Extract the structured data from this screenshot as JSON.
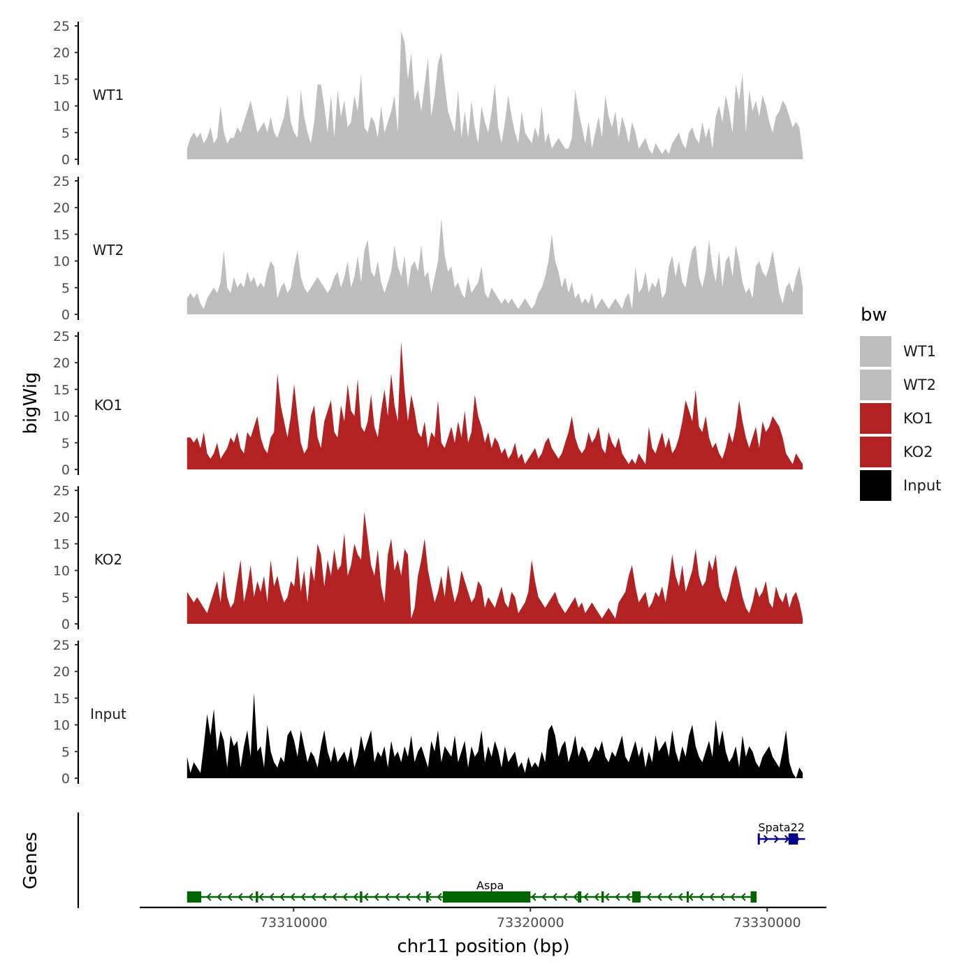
{
  "chart_data": {
    "type": "area",
    "title": "",
    "ylabel": "bigWig",
    "xlabel": "chr11 position (bp)",
    "genes_label": "Genes",
    "ylim": [
      0,
      25
    ],
    "yticks": [
      0,
      5,
      10,
      15,
      20,
      25
    ],
    "xlim": [
      73303500,
      73332500
    ],
    "xticks": [
      73310000,
      73320000,
      73330000
    ],
    "xtick_labels": [
      "73310000",
      "73320000",
      "73330000"
    ],
    "region": [
      73305500,
      73331500
    ],
    "legend": {
      "title": "bw",
      "entries": [
        {
          "name": "WT1",
          "color": "#bebebe"
        },
        {
          "name": "WT2",
          "color": "#bebebe"
        },
        {
          "name": "KO1",
          "color": "#b22222"
        },
        {
          "name": "KO2",
          "color": "#b22222"
        },
        {
          "name": "Input",
          "color": "#000000"
        }
      ]
    },
    "series": [
      {
        "name": "WT1",
        "color": "#bebebe",
        "values": [
          2,
          4,
          5,
          4,
          5,
          3,
          4,
          6,
          3,
          4,
          10,
          5,
          3,
          4,
          4,
          6,
          5,
          7,
          9,
          11,
          8,
          5,
          6,
          7,
          5,
          8,
          5,
          4,
          6,
          8,
          12,
          7,
          5,
          4,
          13,
          8,
          5,
          3,
          7,
          14,
          14,
          10,
          5,
          12,
          4,
          13,
          8,
          11,
          6,
          7,
          12,
          9,
          16,
          6,
          5,
          8,
          7,
          4,
          10,
          5,
          7,
          9,
          12,
          5,
          24,
          22,
          15,
          20,
          11,
          13,
          9,
          14,
          19,
          8,
          12,
          18,
          20,
          14,
          9,
          7,
          5,
          13,
          4,
          9,
          4,
          11,
          6,
          3,
          10,
          7,
          5,
          9,
          14,
          6,
          3,
          7,
          12,
          8,
          5,
          3,
          9,
          5,
          4,
          3,
          6,
          4,
          10,
          3,
          5,
          2,
          3,
          4,
          3,
          2,
          2,
          4,
          13,
          9,
          6,
          3,
          7,
          2,
          5,
          8,
          4,
          12,
          8,
          6,
          9,
          4,
          8,
          6,
          3,
          7,
          5,
          2,
          3,
          4,
          2,
          1,
          3,
          2,
          1,
          2,
          1,
          3,
          4,
          5,
          3,
          2,
          5,
          6,
          4,
          3,
          7,
          4,
          6,
          2,
          8,
          10,
          7,
          12,
          9,
          5,
          14,
          11,
          16,
          5,
          13,
          9,
          11,
          8,
          12,
          10,
          7,
          5,
          8,
          9,
          11,
          10,
          8,
          6,
          7,
          6,
          1
        ]
      },
      {
        "name": "WT2",
        "color": "#bebebe",
        "values": [
          3,
          4,
          3,
          4,
          2,
          1,
          3,
          4,
          5,
          4,
          6,
          12,
          5,
          4,
          7,
          5,
          6,
          5,
          8,
          6,
          7,
          5,
          6,
          5,
          8,
          10,
          9,
          3,
          5,
          6,
          4,
          5,
          9,
          12,
          7,
          5,
          4,
          5,
          6,
          7,
          6,
          5,
          4,
          5,
          7,
          8,
          5,
          7,
          10,
          5,
          7,
          11,
          6,
          12,
          14,
          8,
          7,
          10,
          6,
          4,
          6,
          8,
          13,
          9,
          7,
          11,
          5,
          9,
          10,
          8,
          13,
          7,
          8,
          4,
          7,
          10,
          18,
          11,
          8,
          9,
          5,
          6,
          4,
          3,
          7,
          4,
          5,
          6,
          9,
          4,
          3,
          5,
          4,
          3,
          2,
          3,
          2,
          3,
          2,
          1,
          2,
          3,
          2,
          1,
          2,
          4,
          5,
          7,
          10,
          15,
          10,
          8,
          5,
          7,
          4,
          6,
          3,
          4,
          2,
          3,
          2,
          4,
          1,
          2,
          3,
          2,
          1,
          2,
          3,
          2,
          1,
          3,
          4,
          1,
          9,
          4,
          5,
          8,
          4,
          6,
          5,
          7,
          3,
          4,
          9,
          11,
          7,
          10,
          6,
          5,
          9,
          12,
          13,
          7,
          5,
          8,
          14,
          9,
          6,
          12,
          5,
          10,
          11,
          7,
          13,
          10,
          6,
          4,
          5,
          3,
          9,
          10,
          8,
          7,
          9,
          12,
          8,
          4,
          2,
          5,
          6,
          4,
          7,
          9,
          5
        ]
      },
      {
        "name": "KO1",
        "color": "#b22222",
        "values": [
          6,
          6,
          5,
          6,
          4,
          7,
          3,
          2,
          3,
          5,
          2,
          3,
          4,
          6,
          5,
          7,
          4,
          3,
          7,
          6,
          8,
          10,
          6,
          4,
          3,
          6,
          7,
          18,
          12,
          9,
          6,
          10,
          16,
          10,
          5,
          3,
          4,
          10,
          12,
          6,
          4,
          9,
          11,
          13,
          7,
          6,
          12,
          9,
          16,
          11,
          10,
          17,
          8,
          7,
          9,
          14,
          8,
          6,
          11,
          15,
          10,
          18,
          12,
          9,
          24,
          15,
          9,
          14,
          11,
          7,
          6,
          9,
          4,
          7,
          6,
          13,
          5,
          4,
          6,
          8,
          5,
          9,
          6,
          11,
          5,
          7,
          14,
          10,
          8,
          5,
          7,
          4,
          6,
          5,
          3,
          4,
          2,
          3,
          5,
          2,
          3,
          1,
          2,
          3,
          4,
          2,
          3,
          5,
          6,
          4,
          3,
          2,
          3,
          5,
          7,
          10,
          6,
          4,
          3,
          4,
          7,
          5,
          6,
          8,
          4,
          3,
          7,
          5,
          4,
          6,
          3,
          2,
          1,
          2,
          1,
          3,
          2,
          1,
          8,
          4,
          3,
          5,
          7,
          4,
          6,
          3,
          4,
          6,
          9,
          13,
          11,
          9,
          15,
          8,
          7,
          10,
          6,
          4,
          5,
          3,
          2,
          4,
          7,
          5,
          8,
          13,
          9,
          6,
          4,
          6,
          8,
          4,
          9,
          7,
          8,
          10,
          9,
          8,
          6,
          3,
          2,
          1,
          3,
          2,
          1
        ]
      },
      {
        "name": "KO2",
        "color": "#b22222",
        "values": [
          6,
          5,
          4,
          5,
          4,
          3,
          2,
          4,
          6,
          8,
          4,
          10,
          5,
          3,
          4,
          8,
          12,
          4,
          7,
          11,
          5,
          8,
          6,
          9,
          4,
          12,
          7,
          9,
          6,
          4,
          5,
          8,
          7,
          13,
          6,
          10,
          4,
          11,
          8,
          15,
          13,
          7,
          12,
          9,
          14,
          10,
          11,
          17,
          9,
          11,
          15,
          13,
          12,
          21,
          16,
          11,
          9,
          14,
          7,
          4,
          13,
          16,
          10,
          12,
          9,
          14,
          13,
          1,
          3,
          9,
          12,
          16,
          10,
          7,
          4,
          6,
          9,
          5,
          11,
          7,
          4,
          6,
          10,
          8,
          6,
          4,
          5,
          8,
          7,
          3,
          5,
          4,
          3,
          5,
          7,
          4,
          3,
          6,
          5,
          2,
          3,
          4,
          6,
          12,
          8,
          5,
          4,
          3,
          4,
          5,
          6,
          4,
          3,
          2,
          3,
          4,
          5,
          3,
          4,
          2,
          3,
          4,
          3,
          2,
          1,
          2,
          3,
          2,
          1,
          4,
          5,
          6,
          9,
          11,
          7,
          4,
          5,
          6,
          3,
          4,
          6,
          5,
          7,
          4,
          8,
          13,
          9,
          7,
          11,
          6,
          8,
          10,
          14,
          9,
          7,
          8,
          12,
          10,
          13,
          7,
          5,
          4,
          6,
          9,
          11,
          8,
          5,
          3,
          2,
          4,
          7,
          5,
          6,
          8,
          4,
          3,
          7,
          5,
          4,
          6,
          3,
          5,
          6,
          4,
          1
        ]
      },
      {
        "name": "Input",
        "color": "#000000",
        "values": [
          4,
          1,
          3,
          2,
          1,
          6,
          12,
          8,
          13,
          5,
          9,
          7,
          2,
          8,
          6,
          7,
          2,
          6,
          9,
          4,
          16,
          5,
          6,
          2,
          10,
          5,
          3,
          2,
          4,
          3,
          8,
          9,
          7,
          4,
          9,
          6,
          3,
          5,
          4,
          2,
          6,
          9,
          5,
          3,
          6,
          3,
          4,
          5,
          3,
          6,
          2,
          4,
          8,
          5,
          7,
          9,
          3,
          5,
          4,
          6,
          2,
          7,
          4,
          5,
          3,
          6,
          4,
          8,
          3,
          5,
          6,
          4,
          2,
          7,
          5,
          9,
          3,
          6,
          5,
          4,
          8,
          3,
          5,
          7,
          2,
          6,
          4,
          5,
          9,
          3,
          6,
          4,
          7,
          5,
          2,
          6,
          3,
          4,
          5,
          2,
          3,
          1,
          4,
          2,
          3,
          2,
          5,
          3,
          9,
          10,
          8,
          4,
          6,
          7,
          3,
          5,
          8,
          4,
          6,
          5,
          3,
          4,
          6,
          5,
          7,
          4,
          3,
          5,
          4,
          6,
          8,
          4,
          3,
          5,
          7,
          4,
          6,
          2,
          5,
          3,
          8,
          5,
          6,
          7,
          4,
          9,
          5,
          3,
          6,
          4,
          8,
          10,
          6,
          4,
          3,
          5,
          7,
          4,
          11,
          6,
          9,
          5,
          3,
          4,
          6,
          2,
          8,
          4,
          6,
          5,
          3,
          2,
          4,
          5,
          6,
          4,
          3,
          2,
          5,
          9,
          3,
          1,
          0,
          2,
          1
        ]
      }
    ],
    "gene_tracks": [
      {
        "name": "Aspa",
        "color": "#006400",
        "strand": "-",
        "start": 73305500,
        "end": 73329500,
        "exons": [
          [
            73305500,
            73306100
          ],
          [
            73308400,
            73308500
          ],
          [
            73312800,
            73312900
          ],
          [
            73315600,
            73315700
          ],
          [
            73316300,
            73320000
          ],
          [
            73322000,
            73322150
          ],
          [
            73323000,
            73323100
          ],
          [
            73324300,
            73324650
          ],
          [
            73326600,
            73326650
          ],
          [
            73329300,
            73329550
          ]
        ]
      },
      {
        "name": "Spata22",
        "color": "#00008b",
        "strand": "+",
        "start": 73329600,
        "end": 73331600,
        "exons": [
          [
            73329600,
            73329650
          ],
          [
            73330900,
            73331300
          ]
        ]
      }
    ]
  }
}
